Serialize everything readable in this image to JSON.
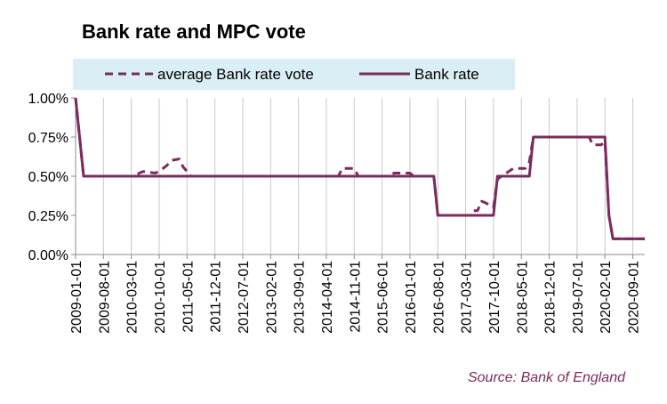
{
  "chart_data": {
    "type": "line",
    "title": "Bank rate and MPC vote",
    "source": "Source: Bank of England",
    "xlabel": "",
    "ylabel": "",
    "ylim": [
      0,
      1.0
    ],
    "y_ticks": [
      "0.00%",
      "0.25%",
      "0.50%",
      "0.75%",
      "1.00%"
    ],
    "y_tick_values": [
      0,
      0.25,
      0.5,
      0.75,
      1.0
    ],
    "x_range": [
      "2009-01-01",
      "2020-12-01"
    ],
    "x_ticks": [
      "2009-01-01",
      "2009-08-01",
      "2010-03-01",
      "2010-10-01",
      "2011-05-01",
      "2011-12-01",
      "2012-07-01",
      "2013-02-01",
      "2013-09-01",
      "2014-04-01",
      "2014-11-01",
      "2015-06-01",
      "2016-01-01",
      "2016-08-01",
      "2017-03-01",
      "2017-10-01",
      "2018-05-01",
      "2018-12-01",
      "2019-07-01",
      "2020-02-01",
      "2020-09-01"
    ],
    "grid": "vertical",
    "legend_position": "top",
    "colors": {
      "series": "#7b2c5e",
      "legend_bg": "#d9eef5",
      "gridline": "#c8c8c8",
      "source": "#7b2c5e"
    },
    "series": [
      {
        "name": "average Bank rate vote",
        "style": "dashed",
        "points": [
          [
            "2009-01-01",
            1.0
          ],
          [
            "2009-03-01",
            0.5
          ],
          [
            "2010-04-01",
            0.5
          ],
          [
            "2010-05-01",
            0.52
          ],
          [
            "2010-06-01",
            0.53
          ],
          [
            "2010-09-01",
            0.52
          ],
          [
            "2010-10-01",
            0.53
          ],
          [
            "2010-12-01",
            0.57
          ],
          [
            "2011-01-01",
            0.6
          ],
          [
            "2011-03-01",
            0.61
          ],
          [
            "2011-04-01",
            0.56
          ],
          [
            "2011-05-01",
            0.53
          ],
          [
            "2011-06-01",
            0.5
          ],
          [
            "2014-07-01",
            0.5
          ],
          [
            "2014-08-01",
            0.55
          ],
          [
            "2014-11-01",
            0.55
          ],
          [
            "2014-12-01",
            0.5
          ],
          [
            "2015-08-01",
            0.5
          ],
          [
            "2015-09-01",
            0.52
          ],
          [
            "2016-01-01",
            0.52
          ],
          [
            "2016-02-01",
            0.5
          ],
          [
            "2016-07-01",
            0.5
          ],
          [
            "2016-08-01",
            0.25
          ],
          [
            "2017-04-01",
            0.25
          ],
          [
            "2017-05-01",
            0.28
          ],
          [
            "2017-06-01",
            0.28
          ],
          [
            "2017-07-01",
            0.34
          ],
          [
            "2017-08-01",
            0.33
          ],
          [
            "2017-10-01",
            0.3
          ],
          [
            "2017-11-01",
            0.48
          ],
          [
            "2017-12-01",
            0.5
          ],
          [
            "2018-03-01",
            0.55
          ],
          [
            "2018-06-01",
            0.55
          ],
          [
            "2018-07-01",
            0.59
          ],
          [
            "2018-08-01",
            0.75
          ],
          [
            "2019-10-01",
            0.75
          ],
          [
            "2019-11-01",
            0.7
          ],
          [
            "2020-01-01",
            0.7
          ],
          [
            "2020-02-01",
            0.72
          ],
          [
            "2020-03-01",
            0.25
          ],
          [
            "2020-04-01",
            0.1
          ],
          [
            "2020-12-01",
            0.1
          ]
        ]
      },
      {
        "name": "Bank rate",
        "style": "solid",
        "points": [
          [
            "2009-01-01",
            1.0
          ],
          [
            "2009-03-01",
            0.5
          ],
          [
            "2016-07-01",
            0.5
          ],
          [
            "2016-08-01",
            0.25
          ],
          [
            "2017-10-01",
            0.25
          ],
          [
            "2017-11-01",
            0.5
          ],
          [
            "2018-07-01",
            0.5
          ],
          [
            "2018-08-01",
            0.75
          ],
          [
            "2020-02-01",
            0.75
          ],
          [
            "2020-03-01",
            0.25
          ],
          [
            "2020-04-01",
            0.1
          ],
          [
            "2020-12-01",
            0.1
          ]
        ]
      }
    ]
  }
}
